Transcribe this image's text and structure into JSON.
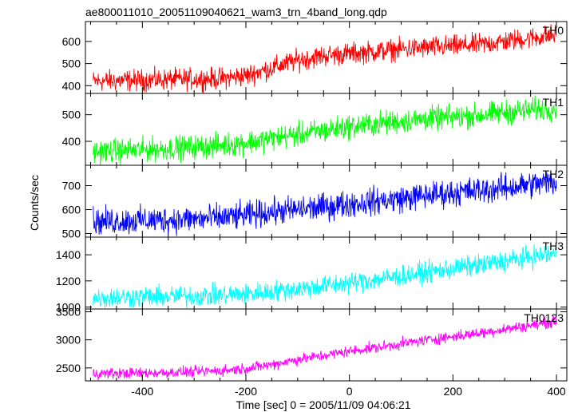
{
  "chart_data": {
    "type": "line",
    "title": "ae800011010_20051109040621_wam3_trn_4band_long.qdp",
    "xlabel": "Time [sec] 0 = 2005/11/09 04:06:21",
    "ylabel": "Counts/sec",
    "xlim": [
      -510,
      420
    ],
    "x_ticks": [
      -400,
      -200,
      0,
      200,
      400
    ],
    "grid": false,
    "panels": [
      {
        "name": "TH0",
        "color": "#ff0000",
        "ylim": [
          365,
          690
        ],
        "y_ticks": [
          400,
          500,
          600
        ],
        "x": [
          -500,
          -400,
          -300,
          -250,
          -200,
          -150,
          -100,
          -50,
          0,
          50,
          100,
          150,
          200,
          250,
          300,
          350,
          400
        ],
        "values": [
          420,
          425,
          430,
          432,
          445,
          480,
          515,
          535,
          545,
          555,
          565,
          572,
          578,
          585,
          600,
          615,
          630
        ],
        "noise": 30
      },
      {
        "name": "TH1",
        "color": "#00ff00",
        "ylim": [
          310,
          580
        ],
        "y_ticks": [
          400,
          500
        ],
        "x": [
          -500,
          -400,
          -300,
          -250,
          -200,
          -150,
          -100,
          -50,
          0,
          50,
          100,
          150,
          200,
          250,
          300,
          350,
          400
        ],
        "values": [
          360,
          368,
          378,
          385,
          395,
          410,
          425,
          440,
          455,
          465,
          475,
          485,
          490,
          498,
          508,
          518,
          525
        ],
        "noise": 28
      },
      {
        "name": "TH2",
        "color": "#0000ff",
        "ylim": [
          485,
          785
        ],
        "y_ticks": [
          500,
          600,
          700
        ],
        "x": [
          -500,
          -400,
          -300,
          -250,
          -200,
          -150,
          -100,
          -50,
          0,
          50,
          100,
          150,
          200,
          250,
          300,
          350,
          400
        ],
        "values": [
          550,
          555,
          560,
          565,
          575,
          590,
          600,
          610,
          625,
          635,
          645,
          660,
          670,
          680,
          690,
          705,
          715
        ],
        "noise": 35
      },
      {
        "name": "TH3",
        "color": "#00ffff",
        "ylim": [
          985,
          1535
        ],
        "y_ticks": [
          1000,
          1200,
          1400
        ],
        "x": [
          -500,
          -400,
          -300,
          -250,
          -200,
          -150,
          -100,
          -50,
          0,
          50,
          100,
          150,
          200,
          250,
          300,
          350,
          400
        ],
        "values": [
          1070,
          1078,
          1085,
          1090,
          1100,
          1120,
          1140,
          1160,
          1185,
          1210,
          1235,
          1265,
          1295,
          1320,
          1350,
          1385,
          1410
        ],
        "noise": 50
      },
      {
        "name": "TH0123",
        "color": "#ff00ff",
        "ylim": [
          2270,
          3550
        ],
        "y_ticks": [
          2500,
          3000,
          3500
        ],
        "x": [
          -500,
          -400,
          -300,
          -250,
          -200,
          -150,
          -100,
          -50,
          0,
          50,
          100,
          150,
          200,
          250,
          300,
          350,
          400
        ],
        "values": [
          2400,
          2410,
          2430,
          2450,
          2490,
          2560,
          2650,
          2720,
          2800,
          2860,
          2930,
          3000,
          3060,
          3120,
          3190,
          3260,
          3330
        ],
        "noise": 60
      }
    ]
  }
}
